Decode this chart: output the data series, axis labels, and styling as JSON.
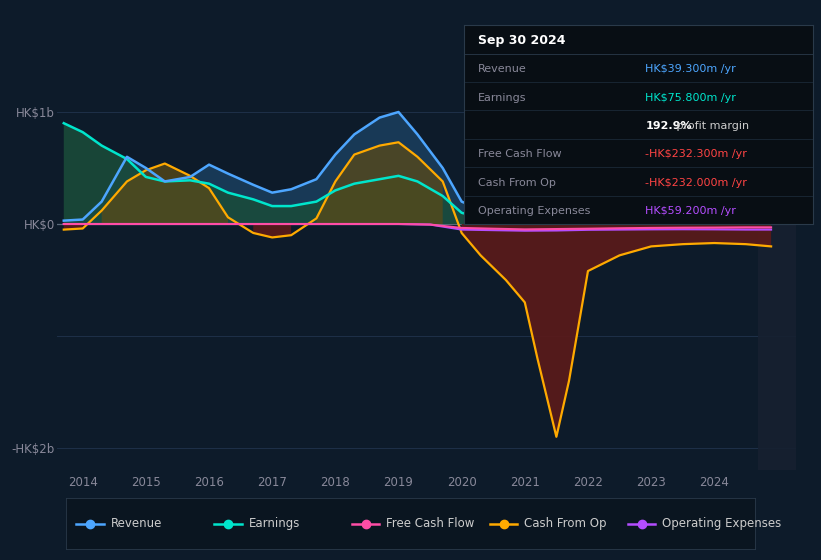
{
  "bg_color": "#0d1b2a",
  "grid_color": "#1e3048",
  "zero_line_color": "#aaaaaa",
  "xlim": [
    2013.6,
    2025.3
  ],
  "ylim": [
    -2200,
    1200
  ],
  "xtick_years": [
    2014,
    2015,
    2016,
    2017,
    2018,
    2019,
    2020,
    2021,
    2022,
    2023,
    2024
  ],
  "series": {
    "revenue": {
      "color": "#4da6ff",
      "fill_color": "#1a3d5c",
      "label": "Revenue",
      "x": [
        2013.7,
        2014.0,
        2014.3,
        2014.7,
        2015.0,
        2015.3,
        2015.7,
        2016.0,
        2016.3,
        2016.7,
        2017.0,
        2017.3,
        2017.7,
        2018.0,
        2018.3,
        2018.7,
        2019.0,
        2019.3,
        2019.7,
        2020.0,
        2020.5,
        2021.0,
        2021.5,
        2022.0,
        2022.5,
        2023.0,
        2023.5,
        2024.0,
        2024.5,
        2024.9
      ],
      "y": [
        30,
        40,
        200,
        600,
        500,
        380,
        420,
        530,
        450,
        350,
        280,
        310,
        400,
        620,
        800,
        950,
        1000,
        800,
        500,
        200,
        80,
        50,
        80,
        120,
        110,
        90,
        100,
        90,
        60,
        40
      ]
    },
    "earnings": {
      "color": "#00e5cc",
      "fill_color": "#1a4d3a",
      "label": "Earnings",
      "x": [
        2013.7,
        2014.0,
        2014.3,
        2014.7,
        2015.0,
        2015.3,
        2015.7,
        2016.0,
        2016.3,
        2016.7,
        2017.0,
        2017.3,
        2017.7,
        2018.0,
        2018.3,
        2018.7,
        2019.0,
        2019.3,
        2019.7,
        2020.0,
        2020.5,
        2021.0,
        2021.5,
        2022.0,
        2022.5,
        2023.0,
        2023.5,
        2024.0,
        2024.5,
        2024.9
      ],
      "y": [
        900,
        820,
        700,
        580,
        420,
        380,
        390,
        360,
        280,
        220,
        160,
        160,
        200,
        300,
        360,
        400,
        430,
        380,
        250,
        100,
        30,
        20,
        30,
        40,
        30,
        25,
        20,
        18,
        15,
        10
      ]
    },
    "free_cash_flow": {
      "color": "#ff4da6",
      "label": "Free Cash Flow",
      "x": [
        2013.7,
        2014.0,
        2015.0,
        2016.0,
        2017.0,
        2018.0,
        2019.0,
        2019.5,
        2020.0,
        2020.5,
        2021.0,
        2021.5,
        2022.0,
        2022.5,
        2023.0,
        2023.5,
        2024.0,
        2024.5,
        2024.9
      ],
      "y": [
        0,
        0,
        0,
        0,
        0,
        0,
        0,
        -5,
        -35,
        -42,
        -48,
        -45,
        -42,
        -38,
        -35,
        -33,
        -32,
        -30,
        -30
      ]
    },
    "cash_from_op": {
      "color": "#ffaa00",
      "fill_color_pos": "#5a4a18",
      "fill_color_neg": "#5a1a1a",
      "label": "Cash From Op",
      "x": [
        2013.7,
        2014.0,
        2014.3,
        2014.7,
        2015.0,
        2015.3,
        2015.7,
        2016.0,
        2016.3,
        2016.7,
        2017.0,
        2017.3,
        2017.7,
        2018.0,
        2018.3,
        2018.7,
        2019.0,
        2019.3,
        2019.7,
        2020.0,
        2020.3,
        2020.7,
        2021.0,
        2021.2,
        2021.5,
        2021.7,
        2022.0,
        2022.5,
        2023.0,
        2023.5,
        2024.0,
        2024.5,
        2024.9
      ],
      "y": [
        -50,
        -40,
        120,
        380,
        480,
        540,
        430,
        320,
        60,
        -80,
        -120,
        -100,
        50,
        380,
        620,
        700,
        730,
        600,
        380,
        -80,
        -280,
        -500,
        -700,
        -1200,
        -1900,
        -1400,
        -420,
        -280,
        -200,
        -180,
        -170,
        -180,
        -200
      ]
    },
    "operating_expenses": {
      "color": "#b44dff",
      "label": "Operating Expenses",
      "x": [
        2013.7,
        2014.0,
        2015.0,
        2016.0,
        2017.0,
        2018.0,
        2019.0,
        2019.5,
        2020.0,
        2020.5,
        2021.0,
        2021.5,
        2022.0,
        2022.5,
        2023.0,
        2023.5,
        2024.0,
        2024.5,
        2024.9
      ],
      "y": [
        0,
        0,
        0,
        0,
        0,
        0,
        0,
        -5,
        -50,
        -55,
        -60,
        -58,
        -52,
        -50,
        -48,
        -47,
        -48,
        -50,
        -50
      ]
    }
  },
  "info_box": {
    "title": "Sep 30 2024",
    "rows": [
      {
        "label": "Revenue",
        "value": "HK$39.300m /yr",
        "value_color": "#4da6ff"
      },
      {
        "label": "Earnings",
        "value": "HK$75.800m /yr",
        "value_color": "#00e5cc"
      },
      {
        "label": "",
        "value": "192.9% profit margin",
        "value_color": "#cccccc",
        "bold_part": "192.9%",
        "bold_color": "#ffffff"
      },
      {
        "label": "Free Cash Flow",
        "value": "-HK$232.300m /yr",
        "value_color": "#ff4444"
      },
      {
        "label": "Cash From Op",
        "value": "-HK$232.000m /yr",
        "value_color": "#ff4444"
      },
      {
        "label": "Operating Expenses",
        "value": "HK$59.200m /yr",
        "value_color": "#b44dff"
      }
    ]
  },
  "legend": [
    {
      "label": "Revenue",
      "color": "#4da6ff"
    },
    {
      "label": "Earnings",
      "color": "#00e5cc"
    },
    {
      "label": "Free Cash Flow",
      "color": "#ff4da6"
    },
    {
      "label": "Cash From Op",
      "color": "#ffaa00"
    },
    {
      "label": "Operating Expenses",
      "color": "#b44dff"
    }
  ]
}
